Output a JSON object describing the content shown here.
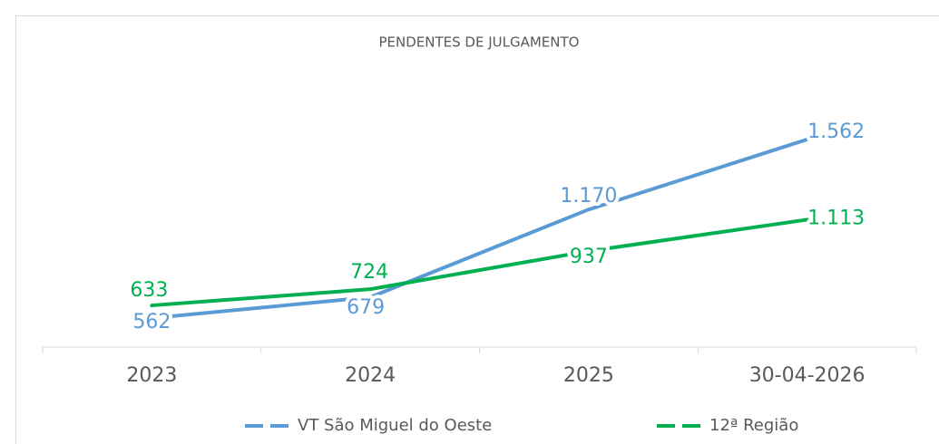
{
  "chart_data": {
    "type": "line",
    "title": "PENDENTES DE JULGAMENTO",
    "categories": [
      "2023",
      "2024",
      "2025",
      "30-04-2026"
    ],
    "series": [
      {
        "name": "VT São Miguel do Oeste",
        "color": "#5b9bd5",
        "values": [
          562,
          679,
          1170,
          1562
        ],
        "value_labels": [
          "562",
          "679",
          "1.170",
          "1.562"
        ]
      },
      {
        "name": "12ª Região",
        "color": "#00b050",
        "values": [
          633,
          724,
          937,
          1113
        ],
        "value_labels": [
          "633",
          "724",
          "937",
          "1.113"
        ]
      }
    ],
    "ylim": [
      400,
      1800
    ],
    "legend": "bottom"
  }
}
